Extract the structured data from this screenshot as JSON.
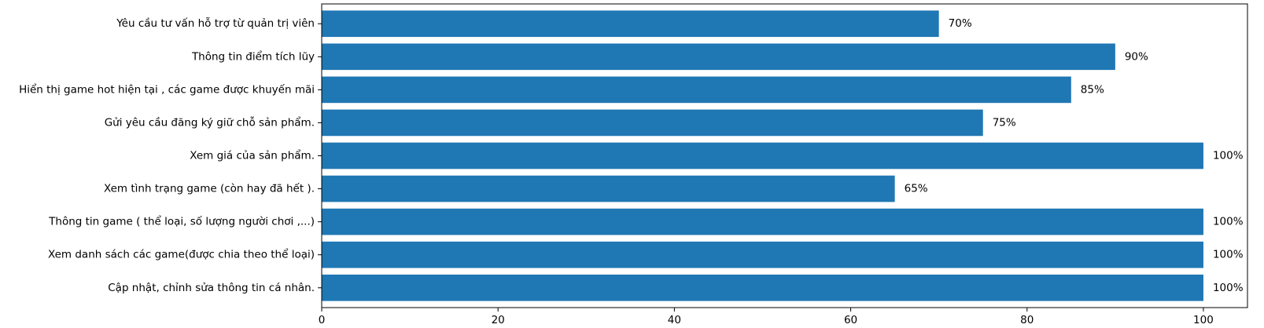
{
  "chart_data": {
    "type": "bar",
    "orientation": "horizontal",
    "categories": [
      "Cập nhật, chỉnh sửa thông tin cá nhân.",
      "Xem danh sách các game(được chia theo thể loại)",
      "Thông tin game ( thể loại, số lượng người chơi ,...)",
      "Xem tình trạng game (còn hay đã hết ).",
      "Xem giá của sản phẩm.",
      "Gửi yêu cầu đăng ký giữ chỗ sản phẩm.",
      "Hiển thị game hot hiện tại , các game được khuyến mãi",
      "Thông tin điểm tích lũy",
      "Yêu cầu tư vấn hỗ trợ từ quản trị viên"
    ],
    "values": [
      100,
      100,
      100,
      65,
      100,
      75,
      85,
      90,
      70
    ],
    "data_labels": [
      "100%",
      "100%",
      "100%",
      "65%",
      "100%",
      "75%",
      "85%",
      "90%",
      "70%"
    ],
    "xlim": [
      0,
      105
    ],
    "xticks": [
      0,
      20,
      40,
      60,
      80,
      100
    ],
    "xtick_labels": [
      "0",
      "20",
      "40",
      "60",
      "80",
      "100"
    ],
    "bar_color": "#1f77b4",
    "grid": false,
    "legend": "none",
    "title": "",
    "xlabel": "",
    "ylabel": ""
  }
}
